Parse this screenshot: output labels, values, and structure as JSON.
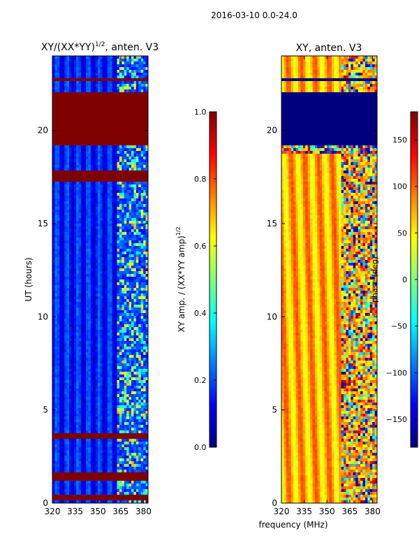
{
  "suptitle": "2016-03-10 0.0-24.0",
  "shared_xlabel": "frequency (MHz)",
  "colors": {
    "jet": [
      "#00007f",
      "#0000ff",
      "#007fff",
      "#00ffff",
      "#7fff7f",
      "#ffff00",
      "#ff7f00",
      "#ff0000",
      "#7f0000"
    ]
  },
  "chart_data": [
    {
      "type": "heatmap",
      "title_base": "XY/(XX*YY)",
      "title_exp": "1/2",
      "title_suffix": ", anten. V3",
      "xlabel": "",
      "ylabel": "UT (hours)",
      "xlim": [
        320,
        383
      ],
      "ylim": [
        0,
        24
      ],
      "xticks": [
        320,
        335,
        350,
        365,
        380
      ],
      "yticks": [
        0,
        5,
        10,
        15,
        20
      ],
      "colorbar": {
        "label_base": "XY amp. / (XX*YY amp)",
        "label_exp": "1/2",
        "range": [
          0.0,
          1.0
        ],
        "ticks": [
          "0.0",
          "0.2",
          "0.4",
          "0.6",
          "0.8",
          "1.0"
        ],
        "tick_values": [
          0.0,
          0.2,
          0.4,
          0.6,
          0.8,
          1.0
        ]
      },
      "saturated_bands_hours": [
        [
          0.1,
          0.5
        ],
        [
          1.2,
          1.6
        ],
        [
          3.4,
          3.7
        ],
        [
          17.3,
          17.9
        ],
        [
          19.2,
          22.1
        ],
        [
          22.6,
          22.8
        ]
      ],
      "rfi_band_mhz": [
        363,
        383
      ]
    },
    {
      "type": "heatmap",
      "title": "XY, anten. V3",
      "xlabel": "",
      "ylabel": "",
      "xlim": [
        320,
        383
      ],
      "ylim": [
        0,
        24
      ],
      "xticks": [
        320,
        335,
        350,
        365,
        380
      ],
      "yticks": [
        0,
        5,
        10,
        15,
        20
      ],
      "colorbar": {
        "label": "phase (deg)",
        "range": [
          -180,
          180
        ],
        "ticks": [
          "−150",
          "−100",
          "−50",
          "0",
          "50",
          "100",
          "150"
        ],
        "tick_values": [
          -150,
          -100,
          -50,
          0,
          50,
          100,
          150
        ]
      },
      "flagged_bands_hours": [
        [
          19.2,
          22.1
        ],
        [
          22.6,
          22.8
        ]
      ],
      "noisy_band_hours": [
        18.8,
        19.2
      ],
      "rfi_band_mhz": [
        360,
        383
      ]
    }
  ]
}
